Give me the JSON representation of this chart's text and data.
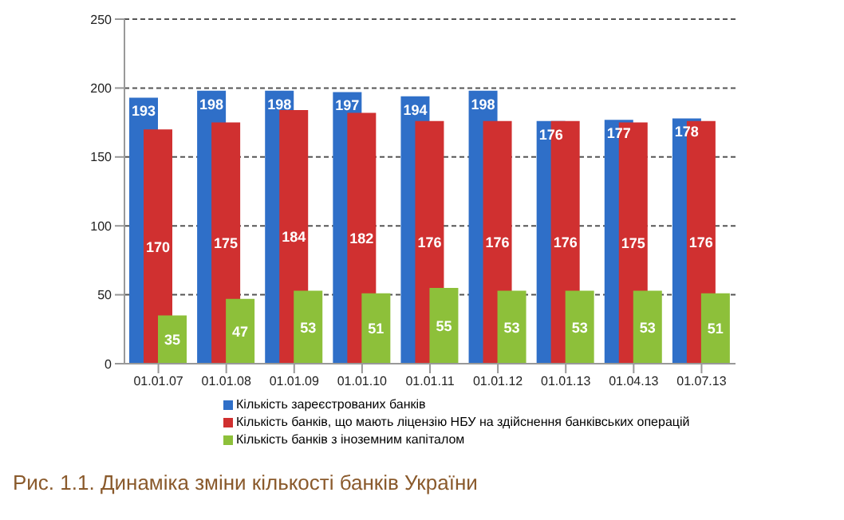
{
  "chart_data": {
    "type": "bar",
    "categories": [
      "01.01.07",
      "01.01.08",
      "01.01.09",
      "01.01.10",
      "01.01.11",
      "01.01.12",
      "01.01.13",
      "01.04.13",
      "01.07.13"
    ],
    "series": [
      {
        "name": "Кількість зареєстрованих банків",
        "color": "#2f6fc8",
        "values": [
          193,
          198,
          198,
          197,
          194,
          198,
          176,
          177,
          178
        ]
      },
      {
        "name": "Кількість банків, що мають ліцензію НБУ на здійснення банківських операцій",
        "color": "#d03030",
        "values": [
          170,
          175,
          184,
          182,
          176,
          176,
          176,
          175,
          176
        ]
      },
      {
        "name": "Кількість банків з іноземним капіталом",
        "color": "#8dc03a",
        "values": [
          35,
          47,
          53,
          51,
          55,
          53,
          53,
          53,
          51
        ]
      }
    ],
    "ylim": [
      0,
      250
    ],
    "yticks": [
      0,
      50,
      100,
      150,
      200,
      250
    ],
    "grid": "y",
    "legend": "bottom",
    "data_labels": true,
    "annotations": [
      "Рис. 1.1. Динаміка зміни кількості банків України"
    ]
  }
}
